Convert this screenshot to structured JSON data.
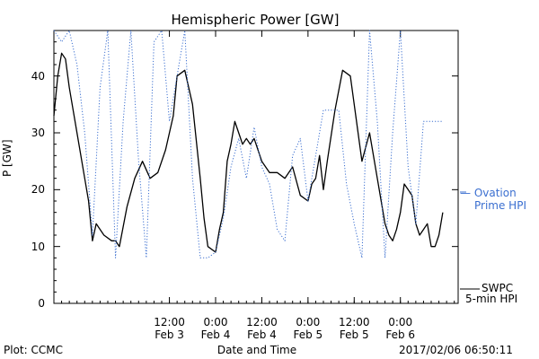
{
  "chart_data": {
    "type": "line",
    "title": "Hemispheric Power [GW]",
    "ylabel": "P [GW]",
    "xlabel": "Date and Time",
    "ylim": [
      0,
      48
    ],
    "yticks": [
      0,
      10,
      20,
      30,
      40
    ],
    "xlim": [
      "Feb 2 06:00",
      "Feb 6 15:00"
    ],
    "xticks": [
      {
        "x": "Feb 3 12:00",
        "line1": "12:00",
        "line2": "Feb 3"
      },
      {
        "x": "Feb 4 00:00",
        "line1": "0:00",
        "line2": "Feb 4"
      },
      {
        "x": "Feb 4 12:00",
        "line1": "12:00",
        "line2": "Feb 4"
      },
      {
        "x": "Feb 5 00:00",
        "line1": "0:00",
        "line2": "Feb 5"
      },
      {
        "x": "Feb 5 12:00",
        "line1": "12:00",
        "line2": "Feb 5"
      },
      {
        "x": "Feb 6 00:00",
        "line1": "0:00",
        "line2": "Feb 6"
      }
    ],
    "grid": false,
    "series": [
      {
        "name": "SWPC 5-min HPI",
        "color": "#000000",
        "style": "solid",
        "x": [
          "Feb 2 06:00",
          "Feb 2 07:00",
          "Feb 2 08:00",
          "Feb 2 09:00",
          "Feb 2 10:00",
          "Feb 2 12:00",
          "Feb 2 14:00",
          "Feb 2 15:00",
          "Feb 2 16:00",
          "Feb 2 17:00",
          "Feb 2 19:00",
          "Feb 2 21:00",
          "Feb 2 22:00",
          "Feb 2 23:00",
          "Feb 3 01:00",
          "Feb 3 03:00",
          "Feb 3 05:00",
          "Feb 3 07:00",
          "Feb 3 09:00",
          "Feb 3 11:00",
          "Feb 3 13:00",
          "Feb 3 14:00",
          "Feb 3 16:00",
          "Feb 3 18:00",
          "Feb 3 20:00",
          "Feb 3 21:00",
          "Feb 3 22:00",
          "Feb 4 00:00",
          "Feb 4 01:00",
          "Feb 4 02:00",
          "Feb 4 03:00",
          "Feb 4 04:00",
          "Feb 4 05:00",
          "Feb 4 06:00",
          "Feb 4 07:00",
          "Feb 4 08:00",
          "Feb 4 09:00",
          "Feb 4 10:00",
          "Feb 4 12:00",
          "Feb 4 14:00",
          "Feb 4 16:00",
          "Feb 4 18:00",
          "Feb 4 20:00",
          "Feb 4 22:00",
          "Feb 5 00:00",
          "Feb 5 01:00",
          "Feb 5 02:00",
          "Feb 5 03:00",
          "Feb 5 04:00",
          "Feb 5 05:00",
          "Feb 5 07:00",
          "Feb 5 09:00",
          "Feb 5 11:00",
          "Feb 5 13:00",
          "Feb 5 14:00",
          "Feb 5 16:00",
          "Feb 5 18:00",
          "Feb 5 19:00",
          "Feb 5 20:00",
          "Feb 5 21:00",
          "Feb 5 22:00",
          "Feb 5 23:00",
          "Feb 6 00:00",
          "Feb 6 01:00",
          "Feb 6 02:00",
          "Feb 6 03:00",
          "Feb 6 04:00",
          "Feb 6 05:00",
          "Feb 6 06:00",
          "Feb 6 07:00",
          "Feb 6 08:00",
          "Feb 6 09:00",
          "Feb 6 10:00",
          "Feb 6 11:00"
        ],
        "y": [
          33,
          40,
          44,
          43,
          38,
          30,
          22,
          18,
          11,
          14,
          12,
          11,
          11,
          10,
          17,
          22,
          25,
          22,
          23,
          27,
          33,
          40,
          41,
          35,
          22,
          15,
          10,
          9,
          13,
          16,
          25,
          28,
          32,
          30,
          28,
          29,
          28,
          29,
          25,
          23,
          23,
          22,
          24,
          19,
          18,
          21,
          22,
          26,
          20,
          25,
          34,
          41,
          40,
          30,
          25,
          30,
          22,
          18,
          14,
          12,
          11,
          13,
          16,
          21,
          20,
          19,
          14,
          12,
          13,
          14,
          10,
          10,
          12,
          16
        ]
      },
      {
        "name": "Ovation Prime HPI",
        "color": "#3b6fd0",
        "style": "dotted",
        "x": [
          "Feb 2 06:00",
          "Feb 2 08:00",
          "Feb 2 10:00",
          "Feb 2 12:00",
          "Feb 2 14:00",
          "Feb 2 16:00",
          "Feb 2 18:00",
          "Feb 2 20:00",
          "Feb 2 22:00",
          "Feb 3 00:00",
          "Feb 3 02:00",
          "Feb 3 04:00",
          "Feb 3 06:00",
          "Feb 3 08:00",
          "Feb 3 10:00",
          "Feb 3 12:00",
          "Feb 3 14:00",
          "Feb 3 16:00",
          "Feb 3 18:00",
          "Feb 3 20:00",
          "Feb 3 22:00",
          "Feb 4 00:00",
          "Feb 4 02:00",
          "Feb 4 04:00",
          "Feb 4 06:00",
          "Feb 4 08:00",
          "Feb 4 10:00",
          "Feb 4 12:00",
          "Feb 4 14:00",
          "Feb 4 16:00",
          "Feb 4 18:00",
          "Feb 4 20:00",
          "Feb 4 22:00",
          "Feb 5 00:00",
          "Feb 5 02:00",
          "Feb 5 04:00",
          "Feb 5 06:00",
          "Feb 5 08:00",
          "Feb 5 10:00",
          "Feb 5 12:00",
          "Feb 5 14:00",
          "Feb 5 16:00",
          "Feb 5 18:00",
          "Feb 5 20:00",
          "Feb 5 22:00",
          "Feb 6 00:00",
          "Feb 6 02:00",
          "Feb 6 04:00",
          "Feb 6 06:00",
          "Feb 6 08:00",
          "Feb 6 10:00",
          "Feb 6 11:00"
        ],
        "y": [
          48,
          46,
          48,
          42,
          30,
          12,
          38,
          48,
          8,
          32,
          48,
          25,
          8,
          46,
          48,
          32,
          40,
          48,
          22,
          8,
          8,
          9,
          15,
          24,
          29,
          22,
          31,
          24,
          21,
          13,
          11,
          26,
          29,
          18,
          26,
          34,
          34,
          34,
          21,
          14,
          8,
          48,
          32,
          8,
          30,
          48,
          24,
          14,
          32,
          32,
          32,
          32
        ]
      }
    ]
  },
  "labels": {
    "plot_credit": "Plot: CCMC",
    "plot_time": "2017/02/06 06:50:11",
    "legend_ovation_line1": "— Ovation",
    "legend_ovation_line2": "Prime HPI",
    "legend_swpc_line1": "SWPC",
    "legend_swpc_line2": "5-min HPI"
  }
}
